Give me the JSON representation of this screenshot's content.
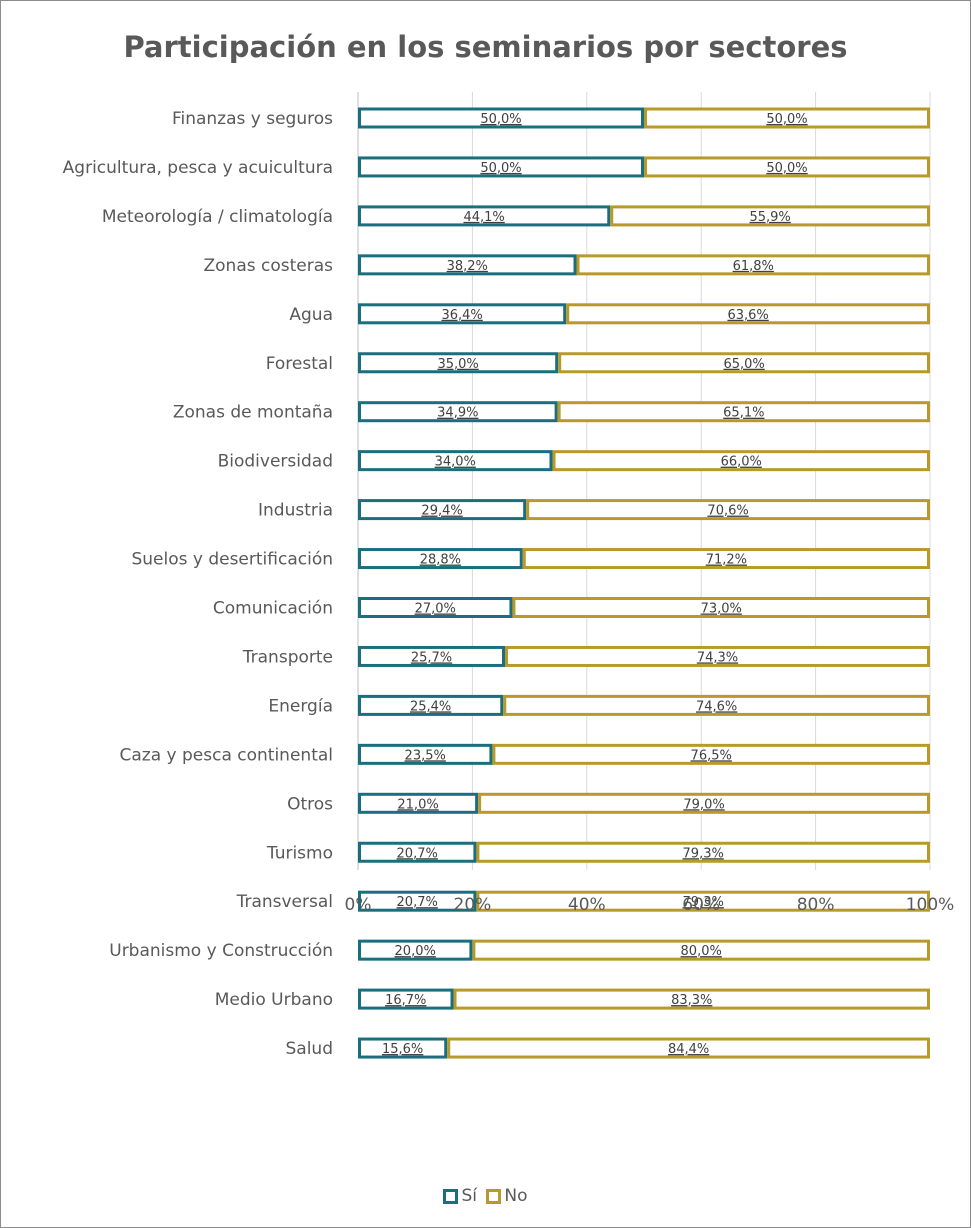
{
  "chart_data": {
    "type": "bar",
    "orientation": "horizontal",
    "stacked": "percent",
    "title": "Participación en los seminarios por sectores",
    "categories": [
      "Finanzas y seguros",
      "Agricultura, pesca y acuicultura",
      "Meteorología / climatología",
      "Zonas costeras",
      "Agua",
      "Forestal",
      "Zonas de montaña",
      "Biodiversidad",
      "Industria",
      "Suelos y desertificación",
      "Comunicación",
      "Transporte",
      "Energía",
      "Caza y pesca continental",
      "Otros",
      "Turismo",
      "Transversal",
      "Urbanismo y Construcción",
      "Medio Urbano",
      "Salud"
    ],
    "series": [
      {
        "name": "Sí",
        "color": "#1b6e7d",
        "values": [
          50.0,
          50.0,
          44.1,
          38.2,
          36.4,
          35.0,
          34.9,
          34.0,
          29.4,
          28.8,
          27.0,
          25.7,
          25.4,
          23.5,
          21.0,
          20.7,
          20.7,
          20.0,
          16.7,
          15.6
        ],
        "labels": [
          "50,0%",
          "50,0%",
          "44,1%",
          "38,2%",
          "36,4%",
          "35,0%",
          "34,9%",
          "34,0%",
          "29,4%",
          "28,8%",
          "27,0%",
          "25,7%",
          "25,4%",
          "23,5%",
          "21,0%",
          "20,7%",
          "20,7%",
          "20,0%",
          "16,7%",
          "15,6%"
        ]
      },
      {
        "name": "No",
        "color": "#b89a2a",
        "values": [
          50.0,
          50.0,
          55.9,
          61.8,
          63.6,
          65.0,
          65.1,
          66.0,
          70.6,
          71.2,
          73.0,
          74.3,
          74.6,
          76.5,
          79.0,
          79.3,
          79.3,
          80.0,
          83.3,
          84.4
        ],
        "labels": [
          "50,0%",
          "50,0%",
          "55,9%",
          "61,8%",
          "63,6%",
          "65,0%",
          "65,1%",
          "66,0%",
          "70,6%",
          "71,2%",
          "73,0%",
          "74,3%",
          "74,6%",
          "76,5%",
          "79,0%",
          "79,3%",
          "79,3%",
          "80,0%",
          "83,3%",
          "84,4%"
        ]
      }
    ],
    "xlim": [
      0,
      100
    ],
    "xticks": [
      "0%",
      "20%",
      "40%",
      "60%",
      "80%",
      "100%"
    ],
    "grid": true,
    "legend": "bottom-center"
  }
}
